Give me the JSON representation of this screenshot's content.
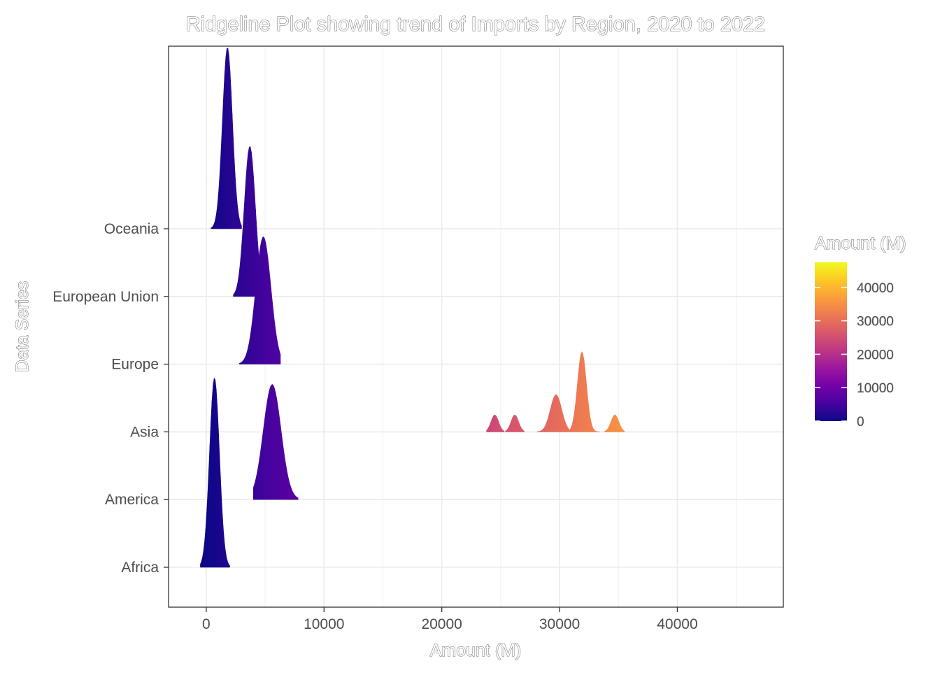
{
  "chart_data": {
    "type": "ridgeline",
    "title": "Ridgeline Plot showing trend of Imports by Region, 2020 to 2022",
    "xlabel": "Amount (M)",
    "ylabel": "Data Series",
    "xlim": [
      -3200,
      49000
    ],
    "x_ticks": [
      0,
      10000,
      20000,
      30000,
      40000
    ],
    "x_tick_labels": [
      "0",
      "10000",
      "20000",
      "30000",
      "40000"
    ],
    "categories": [
      "Africa",
      "America",
      "Asia",
      "Europe",
      "European Union",
      "Oceania"
    ],
    "grid": true,
    "series": [
      {
        "name": "Africa",
        "peaks": [
          {
            "center": 700,
            "sd": 420,
            "height": 2.8,
            "lo": -500,
            "hi": 2000
          }
        ]
      },
      {
        "name": "America",
        "peaks": [
          {
            "center": 5600,
            "sd": 750,
            "height": 1.7,
            "lo": 4000,
            "hi": 7800
          }
        ]
      },
      {
        "name": "Asia",
        "peaks": [
          {
            "center": 24500,
            "sd": 320,
            "height": 0.25,
            "lo": 23800,
            "hi": 25300
          },
          {
            "center": 26200,
            "sd": 320,
            "height": 0.25,
            "lo": 25400,
            "hi": 27000
          },
          {
            "center": 29700,
            "sd": 480,
            "height": 0.55,
            "lo": 28100,
            "hi": 30900
          },
          {
            "center": 31900,
            "sd": 380,
            "height": 1.18,
            "lo": 30900,
            "hi": 33400
          },
          {
            "center": 34700,
            "sd": 330,
            "height": 0.25,
            "lo": 33800,
            "hi": 35500
          }
        ]
      },
      {
        "name": "Europe",
        "peaks": [
          {
            "center": 4850,
            "sd": 640,
            "height": 1.88,
            "lo": 2800,
            "hi": 6300
          }
        ]
      },
      {
        "name": "European Union",
        "peaks": [
          {
            "center": 3700,
            "sd": 470,
            "height": 2.22,
            "lo": 2300,
            "hi": 4600
          }
        ]
      },
      {
        "name": "Oceania",
        "peaks": [
          {
            "center": 1800,
            "sd": 420,
            "height": 2.68,
            "lo": 400,
            "hi": 3000
          }
        ]
      }
    ],
    "legend": {
      "title": "Amount (M)",
      "position": "right",
      "scale": "plasma",
      "range": [
        0,
        47500
      ],
      "ticks": [
        0,
        10000,
        20000,
        30000,
        40000
      ],
      "tick_labels": [
        "0",
        "10000",
        "20000",
        "30000",
        "40000"
      ],
      "colors": [
        "#0D0887",
        "#47039F",
        "#7301A8",
        "#9C179E",
        "#BD3786",
        "#D8576B",
        "#ED7953",
        "#FA9E3B",
        "#FDC926",
        "#F0F921"
      ]
    }
  }
}
